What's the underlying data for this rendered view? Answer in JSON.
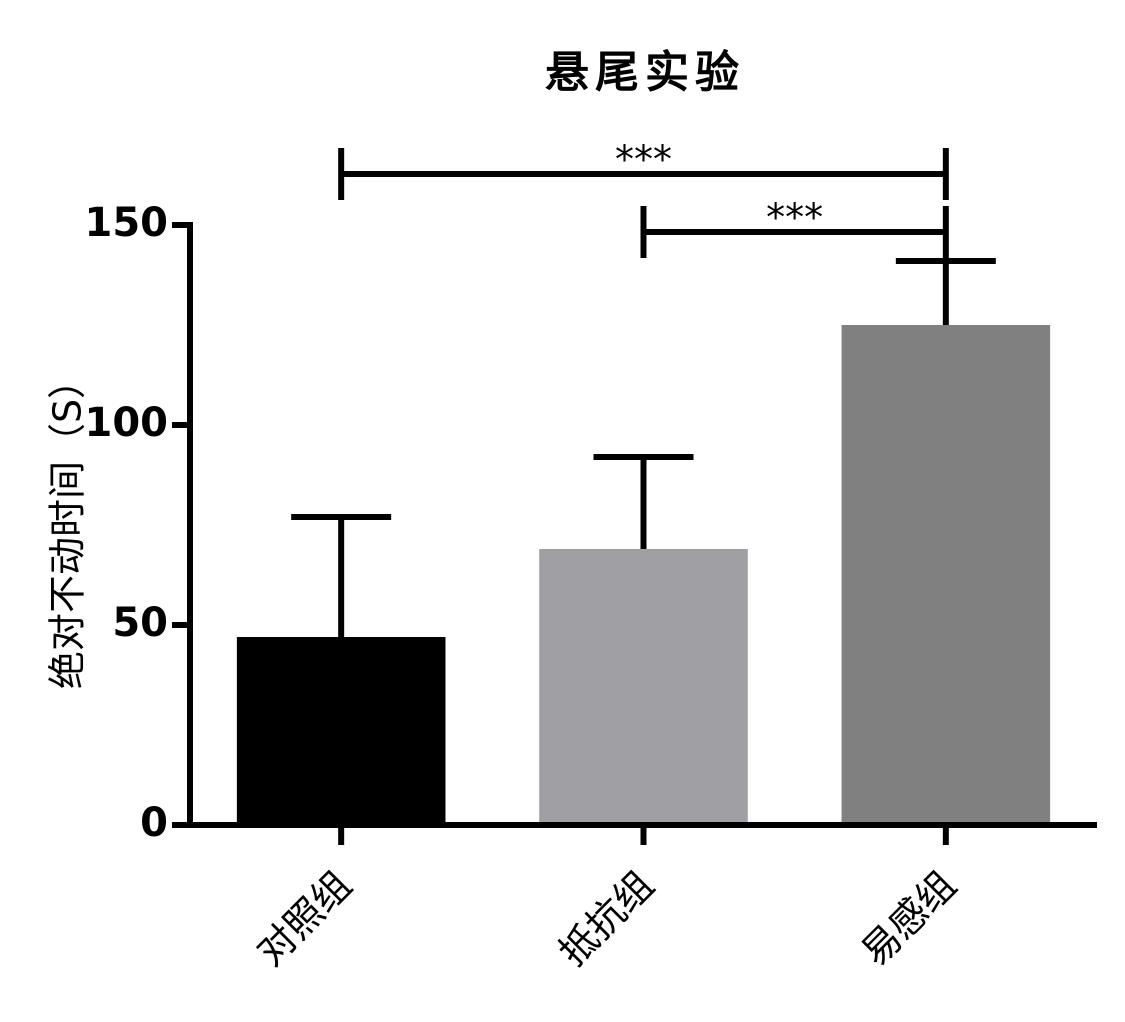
{
  "chart_data": {
    "type": "bar",
    "title": "悬尾实验",
    "y_label": "绝对不动时间（S）",
    "categories": [
      "对照组",
      "抵抗组",
      "易感组"
    ],
    "values": [
      47,
      69,
      125
    ],
    "errors": [
      30,
      23,
      16
    ],
    "colors": [
      "#000000",
      "#a0a0a4",
      "#808080"
    ],
    "ylim": [
      0,
      150
    ],
    "yticks": [
      0,
      50,
      100,
      150
    ],
    "annotations": [
      {
        "from": 0,
        "to": 2,
        "label": "***"
      },
      {
        "from": 1,
        "to": 2,
        "label": "***"
      }
    ]
  }
}
